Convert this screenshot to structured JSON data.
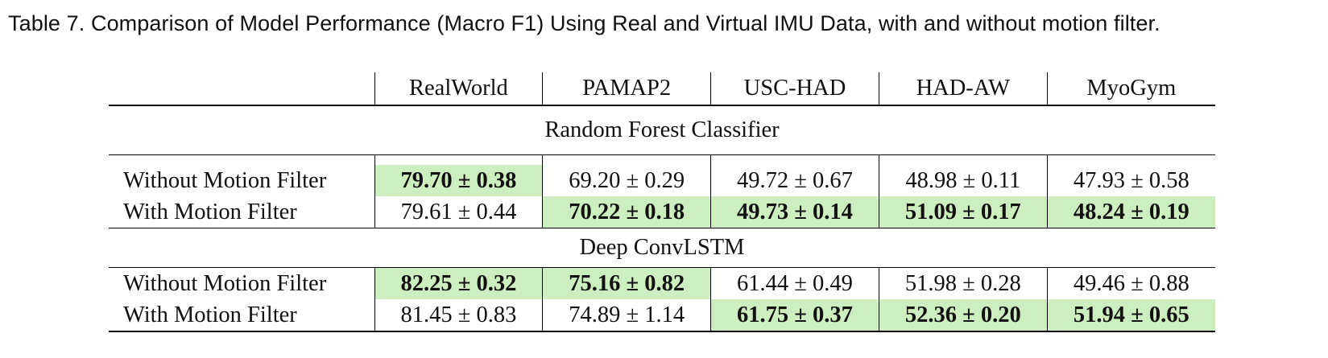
{
  "caption": "Table 7.  Comparison of Model Performance (Macro F1) Using Real and Virtual IMU Data, with and without motion filter.",
  "columns": [
    "",
    "RealWorld",
    "PAMAP2",
    "USC-HAD",
    "HAD-AW",
    "MyoGym"
  ],
  "highlight_color": "#cdeebf",
  "sections": [
    {
      "title": "Random Forest Classifier",
      "rows": [
        {
          "label": "Without Motion Filter",
          "cells": [
            "79.70 ± 0.38",
            "69.20 ± 0.29",
            "49.72 ± 0.67",
            "48.98 ± 0.11",
            "47.93 ± 0.58"
          ],
          "best": [
            true,
            false,
            false,
            false,
            false
          ]
        },
        {
          "label": "With Motion Filter",
          "cells": [
            "79.61 ± 0.44",
            "70.22 ± 0.18",
            "49.73 ± 0.14",
            "51.09 ± 0.17",
            "48.24 ± 0.19"
          ],
          "best": [
            false,
            true,
            true,
            true,
            true
          ]
        }
      ]
    },
    {
      "title": "Deep ConvLSTM",
      "rows": [
        {
          "label": "Without Motion Filter",
          "cells": [
            "82.25 ± 0.32",
            "75.16 ± 0.82",
            "61.44 ± 0.49",
            "51.98 ± 0.28",
            "49.46 ± 0.88"
          ],
          "best": [
            true,
            true,
            false,
            false,
            false
          ]
        },
        {
          "label": "With Motion Filter",
          "cells": [
            "81.45 ± 0.83",
            "74.89 ± 1.14",
            "61.75 ± 0.37",
            "52.36 ± 0.20",
            "51.94 ± 0.65"
          ],
          "best": [
            false,
            false,
            true,
            true,
            true
          ]
        }
      ]
    }
  ]
}
